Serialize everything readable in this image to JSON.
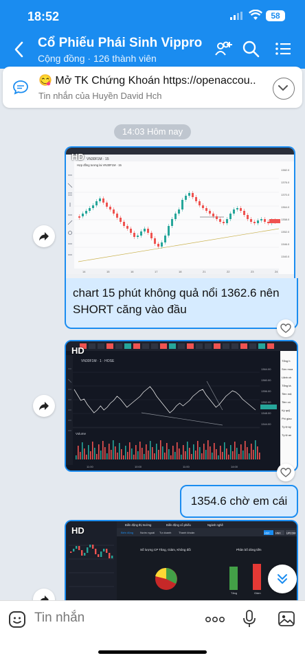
{
  "status": {
    "time": "18:52",
    "battery": "58"
  },
  "header": {
    "title": "Cổ Phiếu Phái Sinh Vippro...",
    "subtitle": "Cộng đồng · 126 thành viên",
    "icons": [
      "back-icon",
      "group-add-icon",
      "search-icon",
      "list-menu-icon"
    ]
  },
  "pinned": {
    "emoji": "😋",
    "text": "Mở TK Chứng Khoán https://openaccou...",
    "sub": "Tin nhắn của Huyền David Hch"
  },
  "timestamp": "14:03 Hôm nay",
  "messages": [
    {
      "type": "image",
      "hd": "HD",
      "chart_symbol": "VN30F1M · 15",
      "chart_title": "Hợp đồng tương lai VN30F1M · 15",
      "price_labels": [
        "1382.0",
        "1376.0",
        "1370.0",
        "1364.0",
        "1358.0",
        "1352.0",
        "1346.0",
        "1340.0"
      ],
      "x_labels": [
        "14",
        "15",
        "16",
        "17",
        "18",
        "21",
        "22",
        "23",
        "24"
      ],
      "caption": "chart 15 phút không quả nổi 1362.6 nên SHORT căng vào đầu"
    },
    {
      "type": "image",
      "hd": "HD",
      "chart_symbol": "VN30F1M · 1 · HOSE",
      "price_labels": [
        "1364.00",
        "1360.00",
        "1356.00",
        "1352.00",
        "1348.00",
        "1344.00"
      ],
      "x_labels": [
        "11:00",
        "10:00",
        "11:00",
        "14:00"
      ],
      "volume_label": "Volume",
      "panel_labels": [
        "Tổng h",
        "Sức mua",
        "Lãnh ch",
        "Tổng tà",
        "Tiền mặ",
        "Tiền có",
        "Ký quỹ",
        "Phí giao",
        "Tỷ lệ ký",
        "Tỷ lệ an"
      ]
    },
    {
      "type": "text",
      "text": "1354.6 chờ em cái"
    },
    {
      "type": "image",
      "hd": "HD",
      "tabs": [
        "Biến động thị trường",
        "Biến động cổ phiếu",
        "Ngành nghề"
      ],
      "subtabs": [
        "Biến động",
        "Nước ngoài",
        "Tự doanh",
        "Thanh khoản"
      ],
      "exchanges": [
        "HSX",
        "HNX",
        "UPCOM"
      ],
      "chart_left_title": "Số lượng CP Tăng, Giảm, Không đổi",
      "chart_right_title": "Phân bố dòng tiền",
      "bar_labels": [
        "Tăng",
        "Giảm"
      ]
    }
  ],
  "composer": {
    "placeholder": "Tin nhắn"
  },
  "colors": {
    "accent": "#1a8cf0",
    "bubble": "#d6ebff",
    "up": "#26a69a",
    "down": "#ef5350"
  }
}
